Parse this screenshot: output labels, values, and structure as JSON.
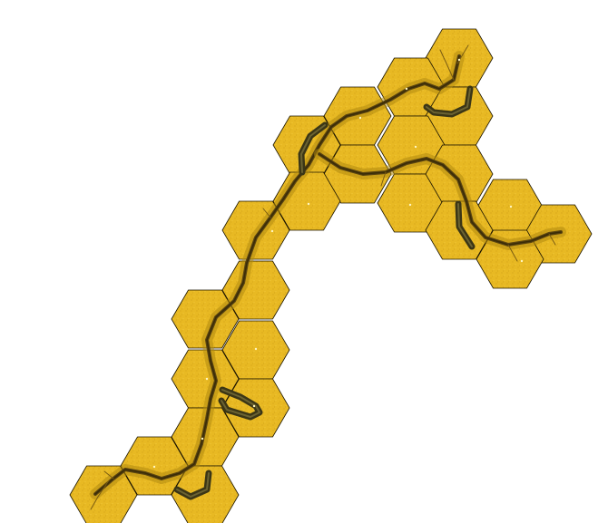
{
  "map": {
    "terrain": "desert",
    "hex_color": "#e8b923",
    "hex_edge_color": "#1b1400",
    "river_color": "#5a4410",
    "cliff_color": "#3b3616"
  }
}
